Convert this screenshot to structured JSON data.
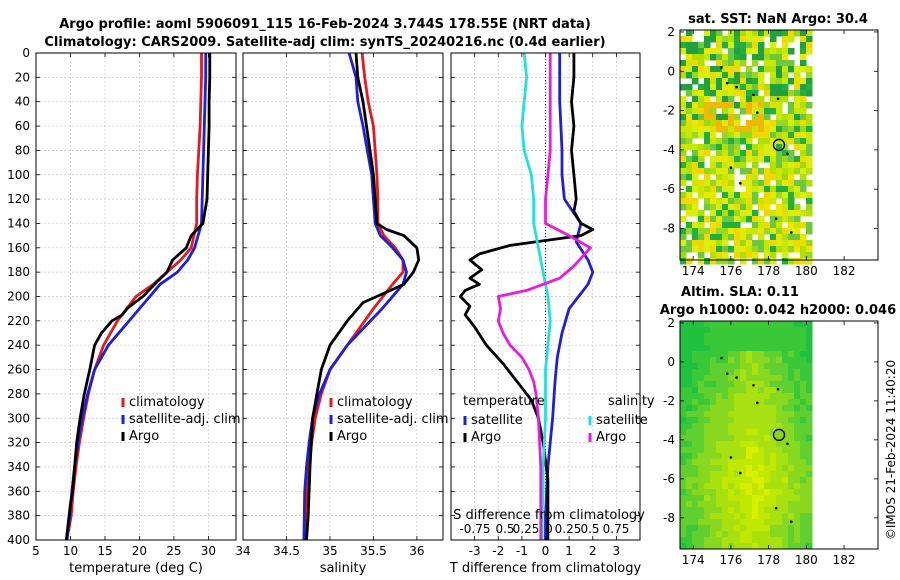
{
  "header": {
    "title_line1": "Argo profile: aoml 5906091_115 16-Feb-2024 3.744S 178.55E (NRT data)",
    "title_line2": "Climatology: CARS2009. Satellite-adj clim: synTS_20240216.nc (0.4d earlier)"
  },
  "footer": {
    "credit": "©IMOS 21-Feb-2024 11:40:20"
  },
  "colors": {
    "climatology": "#e41a1c",
    "satellite": "#1f1fd6",
    "argo": "#000000",
    "s_satellite": "#22e0e0",
    "s_salinity": "#e81ce0"
  },
  "chart_data": [
    {
      "id": "temperature",
      "type": "line",
      "xlabel": "temperature (deg C)",
      "ylabel": "depth (dbar)",
      "xlim": [
        5,
        34
      ],
      "ylim": [
        400,
        0
      ],
      "xticks": [
        5,
        10,
        15,
        20,
        25,
        30
      ],
      "yticks": [
        0,
        20,
        40,
        60,
        80,
        100,
        120,
        140,
        160,
        180,
        200,
        220,
        240,
        260,
        280,
        300,
        320,
        340,
        360,
        380,
        400
      ],
      "legend": [
        "climatology",
        "satellite-adj. clim",
        "Argo"
      ],
      "series": [
        {
          "name": "climatology",
          "color": "#e41a1c",
          "x": [
            29.0,
            29.0,
            28.9,
            28.8,
            28.6,
            28.4,
            28.3,
            28.3,
            27.5,
            26,
            24,
            22,
            19.5,
            16.8,
            14.8,
            13.5,
            12.6,
            11.9,
            11.3,
            10.8,
            10.4,
            10.1,
            9.8,
            9.6,
            9.5
          ],
          "y": [
            0,
            20,
            40,
            60,
            80,
            100,
            120,
            140,
            160,
            170,
            180,
            190,
            200,
            220,
            240,
            260,
            280,
            300,
            320,
            340,
            360,
            380,
            390,
            395,
            400
          ]
        },
        {
          "name": "satellite-adj. clim",
          "color": "#1f1fd6",
          "x": [
            29.6,
            29.6,
            29.5,
            29.4,
            29.3,
            29.2,
            29.1,
            29,
            28.5,
            28,
            27,
            25.5,
            23,
            18.5,
            15.5,
            13.5,
            12.5,
            11.7,
            11.1,
            10.6,
            10.2,
            9.9,
            9.7,
            9.5
          ],
          "y": [
            0,
            20,
            40,
            60,
            80,
            100,
            120,
            140,
            150,
            160,
            170,
            180,
            190,
            220,
            240,
            260,
            280,
            300,
            320,
            340,
            360,
            380,
            390,
            400
          ]
        },
        {
          "name": "Argo",
          "color": "#000000",
          "x": [
            30.2,
            30.2,
            30.1,
            30.1,
            30.0,
            29.9,
            29.8,
            29.2,
            27.5,
            26.8,
            24.8,
            24.0,
            22.2,
            20.5,
            19.3,
            18.2,
            17.5,
            16.0,
            14.5,
            13.5,
            12.8,
            12.0,
            11.4,
            10.9,
            10.6,
            10.3,
            10.0,
            9.8,
            9.6,
            9.4
          ],
          "y": [
            0,
            20,
            40,
            60,
            80,
            100,
            120,
            140,
            150,
            160,
            170,
            180,
            190,
            200,
            205,
            210,
            215,
            220,
            230,
            240,
            260,
            280,
            300,
            320,
            340,
            360,
            370,
            380,
            390,
            400
          ]
        }
      ]
    },
    {
      "id": "salinity",
      "type": "line",
      "xlabel": "salinity",
      "xlim": [
        34,
        36.3
      ],
      "ylim": [
        400,
        0
      ],
      "xticks": [
        34,
        34.5,
        35,
        35.5,
        36
      ],
      "legend": [
        "climatology",
        "satellite-adj. clim",
        "Argo"
      ],
      "series": [
        {
          "name": "climatology",
          "color": "#e41a1c",
          "x": [
            35.37,
            35.4,
            35.44,
            35.5,
            35.52,
            35.54,
            35.55,
            35.55,
            35.62,
            35.75,
            35.84,
            35.84,
            35.72,
            35.5,
            35.2,
            35.0,
            34.9,
            34.83,
            34.79,
            34.76,
            34.74,
            34.72,
            34.71
          ],
          "y": [
            0,
            20,
            40,
            60,
            80,
            100,
            120,
            140,
            150,
            160,
            170,
            180,
            190,
            210,
            240,
            260,
            280,
            300,
            320,
            340,
            360,
            380,
            400
          ]
        },
        {
          "name": "satellite-adj. clim",
          "color": "#1f1fd6",
          "x": [
            35.22,
            35.3,
            35.32,
            35.38,
            35.43,
            35.48,
            35.5,
            35.52,
            35.58,
            35.72,
            35.84,
            35.88,
            35.84,
            35.6,
            35.2,
            35.0,
            34.88,
            34.8,
            34.76,
            34.73,
            34.71,
            34.7
          ],
          "y": [
            0,
            20,
            40,
            60,
            80,
            100,
            120,
            140,
            150,
            160,
            170,
            180,
            190,
            210,
            240,
            260,
            280,
            300,
            320,
            340,
            360,
            400
          ]
        },
        {
          "name": "Argo",
          "color": "#000000",
          "x": [
            35.3,
            35.32,
            35.38,
            35.42,
            35.46,
            35.5,
            35.52,
            35.54,
            35.65,
            35.85,
            36.0,
            36.02,
            35.96,
            35.85,
            35.6,
            35.38,
            35.2,
            35.0,
            34.9,
            34.85,
            34.8,
            34.77,
            34.75,
            34.73
          ],
          "y": [
            0,
            20,
            40,
            60,
            80,
            100,
            120,
            140,
            145,
            150,
            160,
            170,
            180,
            190,
            198,
            205,
            220,
            240,
            260,
            280,
            300,
            340,
            380,
            400
          ]
        }
      ]
    },
    {
      "id": "difference",
      "type": "line",
      "xlabel": "T difference from climatology",
      "top_xlabel": "S difference from climatology",
      "top_ticks": [
        "-0.75",
        "0.5",
        "0.25",
        "0",
        "0.25",
        "0.5",
        "0.75"
      ],
      "xlim": [
        -4,
        4
      ],
      "ylim": [
        400,
        0
      ],
      "xticks": [
        -3,
        -2,
        -1,
        0,
        1,
        2,
        3
      ],
      "legend_left_title": "temperature",
      "legend_right_title": "salinity",
      "legend_left": [
        "satellite",
        "Argo"
      ],
      "legend_right": [
        "satellite",
        "Argo"
      ],
      "series": [
        {
          "name": "T satellite",
          "color": "#1f1fd6",
          "x": [
            0.6,
            0.6,
            0.6,
            0.65,
            0.7,
            0.7,
            0.8,
            1.5,
            1.3,
            1.8,
            2.0,
            1.8,
            1.4,
            1.0,
            0.7,
            0.5,
            0.4,
            0.3,
            0.2,
            0.1,
            0.05,
            0.0,
            0.0
          ],
          "y": [
            0,
            20,
            40,
            60,
            80,
            100,
            120,
            140,
            155,
            170,
            180,
            190,
            200,
            210,
            230,
            250,
            270,
            300,
            320,
            340,
            360,
            380,
            400
          ]
        },
        {
          "name": "T Argo",
          "color": "#000000",
          "x": [
            1.2,
            1.2,
            1.1,
            1.2,
            1.1,
            1.2,
            1.3,
            1.2,
            1.5,
            2.0,
            1.5,
            -1.5,
            -2.8,
            -3.2,
            -2.7,
            -3.2,
            -2.8,
            -3.4,
            -3.6,
            -3.2,
            -3.4,
            -3.0,
            -2.5,
            -1.8,
            -1.4,
            -1.0,
            -0.6,
            -0.3,
            -0.1,
            0.1,
            0.1,
            0.1
          ],
          "y": [
            0,
            20,
            40,
            60,
            80,
            100,
            120,
            130,
            140,
            145,
            150,
            158,
            165,
            170,
            178,
            185,
            190,
            195,
            200,
            208,
            215,
            225,
            240,
            255,
            265,
            275,
            285,
            300,
            320,
            350,
            380,
            400
          ]
        },
        {
          "name": "S satellite",
          "color": "#22e0e0",
          "x": [
            -0.9,
            -0.8,
            -0.9,
            -1.0,
            -0.9,
            -0.6,
            -0.5,
            -0.5,
            -0.3,
            -0.1,
            0.1,
            0.2,
            0.1,
            0.0,
            0.0,
            0.0,
            -0.05,
            -0.1,
            -0.1,
            -0.15,
            -0.15
          ],
          "y": [
            0,
            20,
            40,
            60,
            80,
            100,
            120,
            140,
            160,
            180,
            200,
            220,
            240,
            260,
            280,
            300,
            320,
            340,
            360,
            380,
            400
          ]
        },
        {
          "name": "S Argo",
          "color": "#e81ce0",
          "x": [
            0.2,
            0.2,
            0.2,
            0.2,
            0.2,
            0.1,
            0.0,
            0.0,
            1.0,
            1.9,
            1.2,
            0.6,
            -0.8,
            -2.0,
            -1.9,
            -2.0,
            -1.8,
            -1.5,
            -1.0,
            -0.7,
            -0.5,
            -0.4,
            -0.3,
            -0.2,
            -0.2,
            -0.2
          ],
          "y": [
            0,
            20,
            40,
            60,
            80,
            100,
            120,
            140,
            150,
            160,
            175,
            185,
            195,
            200,
            210,
            220,
            230,
            240,
            250,
            260,
            270,
            280,
            300,
            340,
            380,
            400
          ]
        }
      ]
    },
    {
      "id": "sst_map",
      "type": "heatmap",
      "title": "sat. SST: NaN Argo: 30.4",
      "xlim": [
        173.3,
        183.8
      ],
      "ylim": [
        -9.6,
        2.1
      ],
      "xticks": [
        174,
        176,
        178,
        180,
        182
      ],
      "xticklabels": [
        "174",
        "176",
        "178",
        "180",
        "182"
      ],
      "yticks": [
        2,
        0,
        -2,
        -4,
        -6,
        -8
      ],
      "data_x_range": [
        173.3,
        180
      ],
      "data_y_range": [
        -9.6,
        2.1
      ],
      "float_marker": {
        "lon": 178.55,
        "lat": -3.744
      }
    },
    {
      "id": "sla_map",
      "type": "heatmap",
      "title": "Altim. SLA: 0.11",
      "subtitle": "Argo h1000: 0.042 h2000: 0.046",
      "xlim": [
        173.3,
        183.8
      ],
      "ylim": [
        -9.6,
        2.1
      ],
      "xticks": [
        174,
        176,
        178,
        180,
        182
      ],
      "xticklabels": [
        "174",
        "176",
        "178",
        "180",
        "182"
      ],
      "yticks": [
        2,
        0,
        -2,
        -4,
        -6,
        -8
      ],
      "data_x_range": [
        173.3,
        180
      ],
      "data_y_range": [
        -9.6,
        2.1
      ],
      "float_marker": {
        "lon": 178.55,
        "lat": -3.744
      }
    }
  ]
}
